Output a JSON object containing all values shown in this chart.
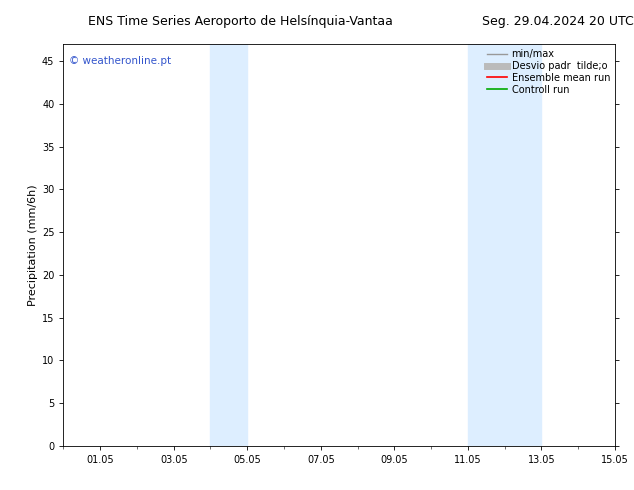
{
  "title_left": "ENS Time Series Aeroporto de Helsínquia-Vantaa",
  "title_right": "Seg. 29.04.2024 20 UTC",
  "ylabel": "Precipitation (mm/6h)",
  "ylim": [
    0,
    47
  ],
  "yticks": [
    0,
    5,
    10,
    15,
    20,
    25,
    30,
    35,
    40,
    45
  ],
  "xlim": [
    0,
    360
  ],
  "xtick_labels": [
    "01.05",
    "03.05",
    "05.05",
    "07.05",
    "09.05",
    "11.05",
    "13.05",
    "15.05"
  ],
  "xtick_positions": [
    24,
    72,
    120,
    168,
    216,
    264,
    312,
    360
  ],
  "shaded_bands": [
    {
      "start": 96,
      "end": 108
    },
    {
      "start": 108,
      "end": 144
    },
    {
      "start": 264,
      "end": 276
    },
    {
      "start": 276,
      "end": 312
    }
  ],
  "shade_color_dark": "#ccdcec",
  "shade_color_light": "#ddeeff",
  "background_color": "#ffffff",
  "legend_entries": [
    {
      "label": "min/max",
      "color": "#999999",
      "lw": 1.0,
      "style": "solid"
    },
    {
      "label": "Desvio padr  tilde;o",
      "color": "#bbbbbb",
      "lw": 5,
      "style": "solid"
    },
    {
      "label": "Ensemble mean run",
      "color": "#ff0000",
      "lw": 1.2,
      "style": "solid"
    },
    {
      "label": "Controll run",
      "color": "#00aa00",
      "lw": 1.2,
      "style": "solid"
    }
  ],
  "watermark_text": "weatheronline.pt",
  "watermark_color": "#3355cc",
  "copyright_color": "#3355cc",
  "title_fontsize": 9,
  "tick_fontsize": 7,
  "ylabel_fontsize": 8,
  "legend_fontsize": 7
}
